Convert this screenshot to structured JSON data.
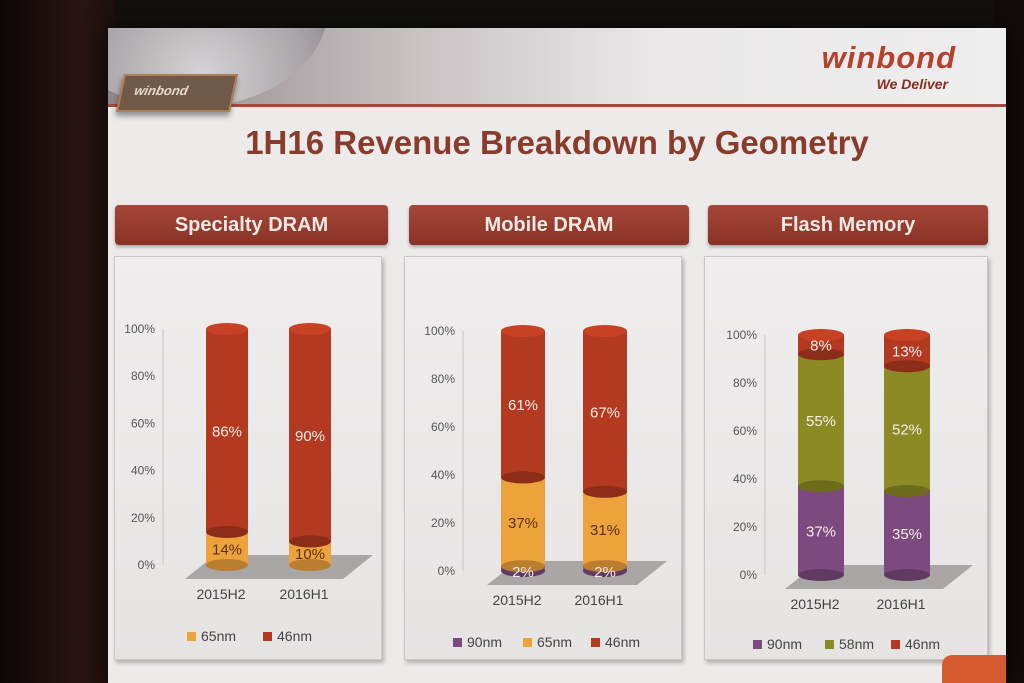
{
  "slide": {
    "title": "1H16 Revenue Breakdown by Geometry",
    "brand": {
      "name": "winbond",
      "tagline": "We Deliver",
      "chip_label": "winbond"
    }
  },
  "panels": [
    {
      "header": "Specialty  DRAM"
    },
    {
      "header": "Mobile DRAM"
    },
    {
      "header": "Flash Memory"
    }
  ],
  "chart_data": [
    {
      "type": "bar",
      "stacked": true,
      "categories": [
        "2015H2",
        "2016H1"
      ],
      "series": [
        {
          "name": "65nm",
          "values": [
            14,
            10
          ],
          "labels": [
            "14%",
            "10%"
          ],
          "color": "#eda23c"
        },
        {
          "name": "46nm",
          "values": [
            86,
            90
          ],
          "labels": [
            "86%",
            "90%"
          ],
          "color": "#b33a20"
        }
      ],
      "yticks": [
        "0%",
        "20%",
        "40%",
        "60%",
        "80%",
        "100%"
      ],
      "ylim": [
        0,
        100
      ],
      "legend": "bottom"
    },
    {
      "type": "bar",
      "stacked": true,
      "categories": [
        "2015H2",
        "2016H1"
      ],
      "series": [
        {
          "name": "90nm",
          "values": [
            2,
            2
          ],
          "labels": [
            "2%",
            "2%"
          ],
          "color": "#7c4a7e"
        },
        {
          "name": "65nm",
          "values": [
            37,
            31
          ],
          "labels": [
            "37%",
            "31%"
          ],
          "color": "#eda23c"
        },
        {
          "name": "46nm",
          "values": [
            61,
            67
          ],
          "labels": [
            "61%",
            "67%"
          ],
          "color": "#b33a20"
        }
      ],
      "yticks": [
        "0%",
        "20%",
        "40%",
        "60%",
        "80%",
        "100%"
      ],
      "ylim": [
        0,
        100
      ],
      "legend": "bottom"
    },
    {
      "type": "bar",
      "stacked": true,
      "categories": [
        "2015H2",
        "2016H1"
      ],
      "series": [
        {
          "name": "90nm",
          "values": [
            37,
            35
          ],
          "labels": [
            "37%",
            "35%"
          ],
          "color": "#7c4a7e"
        },
        {
          "name": "58nm",
          "values": [
            55,
            52
          ],
          "labels": [
            "55%",
            "52%"
          ],
          "color": "#8c8a24"
        },
        {
          "name": "46nm",
          "values": [
            8,
            13
          ],
          "labels": [
            "8%",
            "13%"
          ],
          "color": "#b33a20"
        }
      ],
      "yticks": [
        "0%",
        "20%",
        "40%",
        "60%",
        "80%",
        "100%"
      ],
      "ylim": [
        0,
        100
      ],
      "legend": "bottom"
    }
  ]
}
